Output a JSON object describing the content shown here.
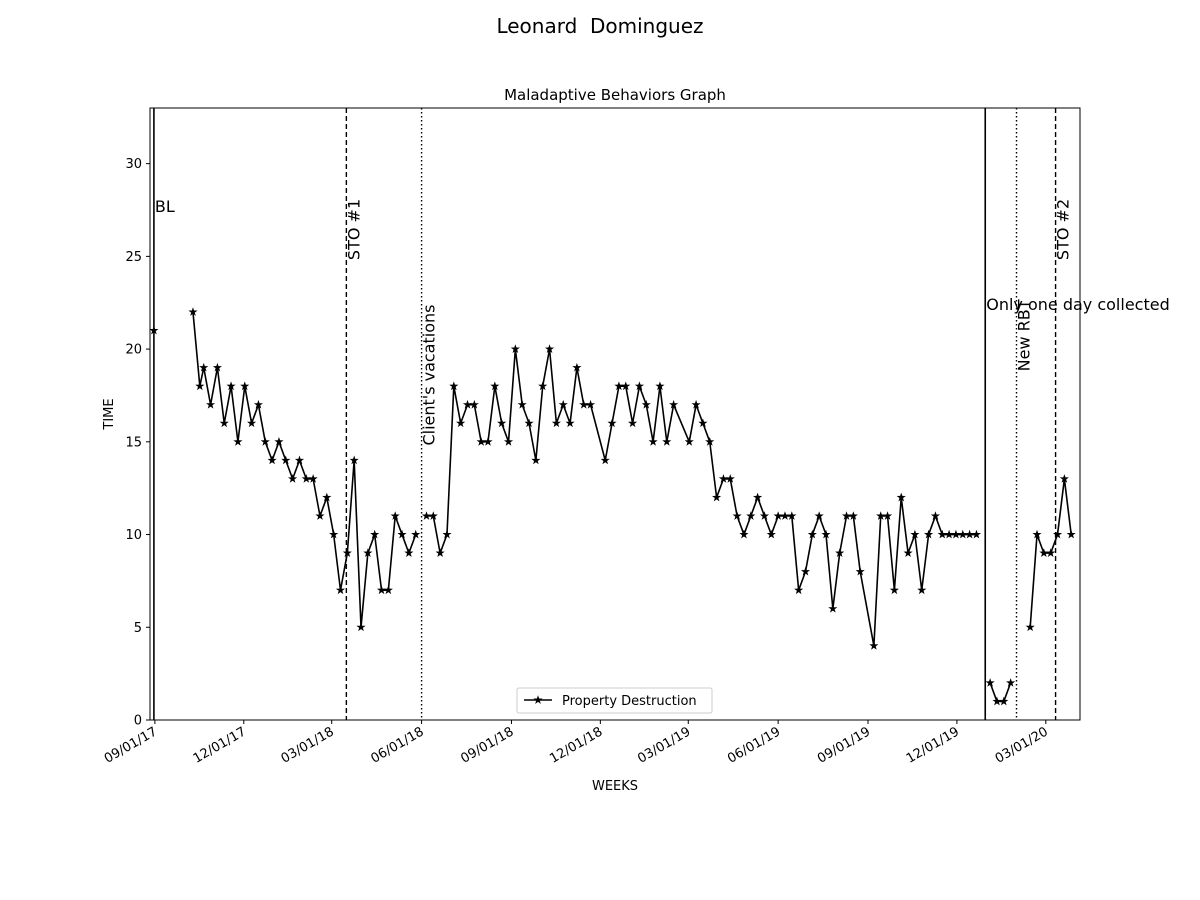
{
  "suptitle": "Leonard  Dominguez",
  "chart_data": {
    "type": "line",
    "title": "Maladaptive Behaviors Graph",
    "xlabel": "WEEKS",
    "ylabel": "TIME",
    "ylim": [
      0,
      33
    ],
    "yticks": [
      0,
      5,
      10,
      15,
      20,
      25,
      30
    ],
    "xlim": [
      "2017-08-27",
      "2020-04-05"
    ],
    "xticks": [
      {
        "date": "2017-09-01",
        "label": "09/01/17"
      },
      {
        "date": "2017-12-01",
        "label": "12/01/17"
      },
      {
        "date": "2018-03-01",
        "label": "03/01/18"
      },
      {
        "date": "2018-06-01",
        "label": "06/01/18"
      },
      {
        "date": "2018-09-01",
        "label": "09/01/18"
      },
      {
        "date": "2018-12-01",
        "label": "12/01/18"
      },
      {
        "date": "2019-03-01",
        "label": "03/01/19"
      },
      {
        "date": "2019-06-01",
        "label": "06/01/19"
      },
      {
        "date": "2019-09-01",
        "label": "09/01/19"
      },
      {
        "date": "2019-12-01",
        "label": "12/01/19"
      },
      {
        "date": "2020-03-01",
        "label": "03/01/20"
      }
    ],
    "legend": {
      "position": "lower-center",
      "color": "#000000"
    },
    "series": [
      {
        "name": "Property Destruction",
        "color": "#000000",
        "marker": "star",
        "segments": [
          [
            {
              "x": "2017-08-31",
              "y": 21
            }
          ],
          [
            {
              "x": "2017-10-10",
              "y": 22
            },
            {
              "x": "2017-10-17",
              "y": 18
            },
            {
              "x": "2017-10-21",
              "y": 19
            },
            {
              "x": "2017-10-28",
              "y": 17
            },
            {
              "x": "2017-11-04",
              "y": 19
            },
            {
              "x": "2017-11-11",
              "y": 16
            },
            {
              "x": "2017-11-18",
              "y": 18
            },
            {
              "x": "2017-11-25",
              "y": 15
            },
            {
              "x": "2017-12-02",
              "y": 18
            },
            {
              "x": "2017-12-09",
              "y": 16
            },
            {
              "x": "2017-12-16",
              "y": 17
            },
            {
              "x": "2017-12-23",
              "y": 15
            },
            {
              "x": "2017-12-30",
              "y": 14
            },
            {
              "x": "2018-01-06",
              "y": 15
            },
            {
              "x": "2018-01-13",
              "y": 14
            },
            {
              "x": "2018-01-20",
              "y": 13
            },
            {
              "x": "2018-01-27",
              "y": 14
            },
            {
              "x": "2018-02-03",
              "y": 13
            },
            {
              "x": "2018-02-10",
              "y": 13
            },
            {
              "x": "2018-02-17",
              "y": 11
            },
            {
              "x": "2018-02-24",
              "y": 12
            },
            {
              "x": "2018-03-03",
              "y": 10
            },
            {
              "x": "2018-03-10",
              "y": 7
            },
            {
              "x": "2018-03-17",
              "y": 9
            },
            {
              "x": "2018-03-24",
              "y": 14
            },
            {
              "x": "2018-03-31",
              "y": 5
            },
            {
              "x": "2018-04-07",
              "y": 9
            },
            {
              "x": "2018-04-14",
              "y": 10
            },
            {
              "x": "2018-04-21",
              "y": 7
            },
            {
              "x": "2018-04-28",
              "y": 7
            },
            {
              "x": "2018-05-05",
              "y": 11
            },
            {
              "x": "2018-05-12",
              "y": 10
            },
            {
              "x": "2018-05-19",
              "y": 9
            },
            {
              "x": "2018-05-26",
              "y": 10
            }
          ],
          [
            {
              "x": "2018-06-06",
              "y": 11
            },
            {
              "x": "2018-06-13",
              "y": 11
            },
            {
              "x": "2018-06-20",
              "y": 9
            },
            {
              "x": "2018-06-27",
              "y": 10
            },
            {
              "x": "2018-07-04",
              "y": 18
            },
            {
              "x": "2018-07-11",
              "y": 16
            },
            {
              "x": "2018-07-18",
              "y": 17
            },
            {
              "x": "2018-07-25",
              "y": 17
            },
            {
              "x": "2018-08-01",
              "y": 15
            },
            {
              "x": "2018-08-08",
              "y": 15
            },
            {
              "x": "2018-08-15",
              "y": 18
            },
            {
              "x": "2018-08-22",
              "y": 16
            },
            {
              "x": "2018-08-29",
              "y": 15
            },
            {
              "x": "2018-09-05",
              "y": 20
            },
            {
              "x": "2018-09-12",
              "y": 17
            },
            {
              "x": "2018-09-19",
              "y": 16
            },
            {
              "x": "2018-09-26",
              "y": 14
            },
            {
              "x": "2018-10-03",
              "y": 18
            },
            {
              "x": "2018-10-10",
              "y": 20
            },
            {
              "x": "2018-10-17",
              "y": 16
            },
            {
              "x": "2018-10-24",
              "y": 17
            },
            {
              "x": "2018-10-31",
              "y": 16
            },
            {
              "x": "2018-11-07",
              "y": 19
            },
            {
              "x": "2018-11-14",
              "y": 17
            },
            {
              "x": "2018-11-21",
              "y": 17
            },
            {
              "x": "2018-12-06",
              "y": 14
            },
            {
              "x": "2018-12-13",
              "y": 16
            },
            {
              "x": "2018-12-20",
              "y": 18
            },
            {
              "x": "2018-12-27",
              "y": 18
            },
            {
              "x": "2019-01-03",
              "y": 16
            },
            {
              "x": "2019-01-10",
              "y": 18
            },
            {
              "x": "2019-01-17",
              "y": 17
            },
            {
              "x": "2019-01-24",
              "y": 15
            },
            {
              "x": "2019-01-31",
              "y": 18
            },
            {
              "x": "2019-02-07",
              "y": 15
            },
            {
              "x": "2019-02-14",
              "y": 17
            },
            {
              "x": "2019-03-02",
              "y": 15
            },
            {
              "x": "2019-03-09",
              "y": 17
            },
            {
              "x": "2019-03-16",
              "y": 16
            },
            {
              "x": "2019-03-23",
              "y": 15
            },
            {
              "x": "2019-03-30",
              "y": 12
            },
            {
              "x": "2019-04-06",
              "y": 13
            },
            {
              "x": "2019-04-13",
              "y": 13
            },
            {
              "x": "2019-04-20",
              "y": 11
            },
            {
              "x": "2019-04-27",
              "y": 10
            },
            {
              "x": "2019-05-04",
              "y": 11
            },
            {
              "x": "2019-05-11",
              "y": 12
            },
            {
              "x": "2019-05-18",
              "y": 11
            },
            {
              "x": "2019-05-25",
              "y": 10
            },
            {
              "x": "2019-06-01",
              "y": 11
            },
            {
              "x": "2019-06-08",
              "y": 11
            },
            {
              "x": "2019-06-15",
              "y": 11
            },
            {
              "x": "2019-06-22",
              "y": 7
            },
            {
              "x": "2019-06-29",
              "y": 8
            },
            {
              "x": "2019-07-06",
              "y": 10
            },
            {
              "x": "2019-07-13",
              "y": 11
            },
            {
              "x": "2019-07-20",
              "y": 10
            },
            {
              "x": "2019-07-27",
              "y": 6
            },
            {
              "x": "2019-08-03",
              "y": 9
            },
            {
              "x": "2019-08-10",
              "y": 11
            },
            {
              "x": "2019-08-17",
              "y": 11
            },
            {
              "x": "2019-08-24",
              "y": 8
            },
            {
              "x": "2019-09-07",
              "y": 4
            },
            {
              "x": "2019-09-14",
              "y": 11
            },
            {
              "x": "2019-09-21",
              "y": 11
            },
            {
              "x": "2019-09-28",
              "y": 7
            },
            {
              "x": "2019-10-05",
              "y": 12
            },
            {
              "x": "2019-10-12",
              "y": 9
            },
            {
              "x": "2019-10-19",
              "y": 10
            },
            {
              "x": "2019-10-26",
              "y": 7
            },
            {
              "x": "2019-11-02",
              "y": 10
            },
            {
              "x": "2019-11-09",
              "y": 11
            },
            {
              "x": "2019-11-16",
              "y": 10
            },
            {
              "x": "2019-11-23",
              "y": 10
            },
            {
              "x": "2019-11-30",
              "y": 10
            },
            {
              "x": "2019-12-07",
              "y": 10
            },
            {
              "x": "2019-12-14",
              "y": 10
            },
            {
              "x": "2019-12-21",
              "y": 10
            }
          ],
          [
            {
              "x": "2020-01-04",
              "y": 2
            },
            {
              "x": "2020-01-11",
              "y": 1
            },
            {
              "x": "2020-01-18",
              "y": 1
            },
            {
              "x": "2020-01-25",
              "y": 2
            }
          ],
          [
            {
              "x": "2020-02-14",
              "y": 5
            },
            {
              "x": "2020-02-21",
              "y": 10
            },
            {
              "x": "2020-02-28",
              "y": 9
            },
            {
              "x": "2020-03-06",
              "y": 9
            },
            {
              "x": "2020-03-13",
              "y": 10
            },
            {
              "x": "2020-03-20",
              "y": 13
            },
            {
              "x": "2020-03-27",
              "y": 10
            }
          ]
        ]
      }
    ],
    "phase_lines": [
      {
        "x": "2017-08-31",
        "style": "solid",
        "label": "BL",
        "label_orientation": "horizontal",
        "label_y": 27.4
      },
      {
        "x": "2018-03-16",
        "style": "dashed",
        "label": "STO #1",
        "label_orientation": "vertical",
        "label_y": 24.8
      },
      {
        "x": "2018-06-01",
        "style": "dotted",
        "label": "Client's vacations",
        "label_orientation": "vertical",
        "label_y": 14.8
      },
      {
        "x": "2019-12-30",
        "style": "solid",
        "label": "Only one day collected",
        "label_orientation": "horizontal",
        "label_y": 22.1
      },
      {
        "x": "2020-01-31",
        "style": "dotted",
        "label": "New RBT",
        "label_orientation": "vertical",
        "label_y": 18.8
      },
      {
        "x": "2020-03-11",
        "style": "dashed",
        "label": "STO #2",
        "label_orientation": "vertical",
        "label_y": 24.8
      }
    ]
  }
}
